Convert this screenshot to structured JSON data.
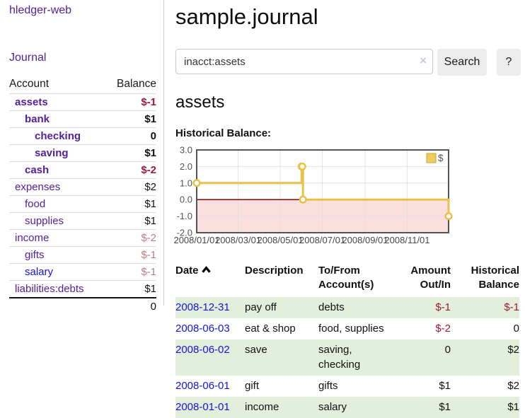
{
  "colors": {
    "link_purple": "#54219b",
    "link_blue": "#1414e0",
    "negative_strong": "#9e1b30",
    "negative_dim": "#bd7d82",
    "row_green": "#e2efda",
    "chart_line_gold": "#e8c04a",
    "chart_zero_line": "#8b0000",
    "chart_negative_fill": "#fbdede"
  },
  "sidebar": {
    "app_title": "hledger-web",
    "nav_journal": "Journal",
    "accounts_table": {
      "headers": [
        "Account",
        "Balance"
      ],
      "rows": [
        {
          "name": "assets",
          "balance": "$-1",
          "indent": 1,
          "bold": true,
          "balance_class": "neg-strong"
        },
        {
          "name": "bank",
          "balance": "$1",
          "indent": 2,
          "bold": true,
          "balance_class": ""
        },
        {
          "name": "checking",
          "balance": "0",
          "indent": 3,
          "bold": true,
          "balance_class": ""
        },
        {
          "name": "saving",
          "balance": "$1",
          "indent": 3,
          "bold": true,
          "balance_class": ""
        },
        {
          "name": "cash",
          "balance": "$-2",
          "indent": 2,
          "bold": true,
          "balance_class": "neg-strong"
        },
        {
          "name": "expenses",
          "balance": "$2",
          "indent": 1,
          "bold": false,
          "balance_class": ""
        },
        {
          "name": "food",
          "balance": "$1",
          "indent": 2,
          "bold": false,
          "balance_class": ""
        },
        {
          "name": "supplies",
          "balance": "$1",
          "indent": 2,
          "bold": false,
          "balance_class": ""
        },
        {
          "name": "income",
          "balance": "$-2",
          "indent": 1,
          "bold": false,
          "balance_class": "neg-dim"
        },
        {
          "name": "gifts",
          "balance": "$-1",
          "indent": 2,
          "bold": false,
          "balance_class": "neg-dim"
        },
        {
          "name": "salary",
          "balance": "$-1",
          "indent": 2,
          "bold": false,
          "balance_class": "neg-dim",
          "name_class": "blue"
        },
        {
          "name": "liabilities:debts",
          "balance": "$1",
          "indent": 1,
          "bold": false,
          "balance_class": ""
        }
      ],
      "total": "0"
    }
  },
  "header": {
    "title": "sample.journal"
  },
  "search": {
    "value": "inacct:assets",
    "clear_icon": "×",
    "button_label": "Search",
    "help_label": "?"
  },
  "account_page": {
    "title": "assets",
    "chart_label": "Historical Balance:"
  },
  "chart_data": {
    "type": "line",
    "style": "step",
    "title": "Historical Balance",
    "legend": {
      "label": "$",
      "position": "top-right"
    },
    "x_range": [
      "2008-01-01",
      "2008-12-31"
    ],
    "ylim": [
      -2,
      3
    ],
    "grid": true,
    "zero_line": true,
    "negative_region_shaded": true,
    "series": [
      {
        "name": "$",
        "points": [
          {
            "date": "2008-01-01",
            "value": 1
          },
          {
            "date": "2008-06-01",
            "value": 2
          },
          {
            "date": "2008-06-02",
            "value": 2
          },
          {
            "date": "2008-06-03",
            "value": 0
          },
          {
            "date": "2008-12-31",
            "value": -1
          }
        ]
      }
    ],
    "y_ticks": [
      {
        "label": "3.0",
        "value": 3
      },
      {
        "label": "2.0",
        "value": 2
      },
      {
        "label": "1.0",
        "value": 1
      },
      {
        "label": "0.0",
        "value": 0
      },
      {
        "label": "-1.0",
        "value": -1
      },
      {
        "label": "-2.0",
        "value": -2
      }
    ],
    "x_ticks": [
      {
        "label": "2008/01/01",
        "date": "2008-01-01"
      },
      {
        "label": "2008/03/01",
        "date": "2008-03-01"
      },
      {
        "label": "2008/05/01",
        "date": "2008-05-01"
      },
      {
        "label": "2008/07/01",
        "date": "2008-07-01"
      },
      {
        "label": "2008/09/01",
        "date": "2008-09-01"
      },
      {
        "label": "2008/11/01",
        "date": "2008-11-01"
      }
    ]
  },
  "transactions_table": {
    "headers": [
      "Date",
      "Description",
      "To/From Account(s)",
      "Amount Out/In",
      "Historical Balance"
    ],
    "sort": "date-ascending",
    "rows": [
      {
        "date": "2008-12-31",
        "description": "pay off",
        "accounts": "debts",
        "amount": "$-1",
        "amount_class": "neg",
        "balance": "$-1",
        "balance_class": "neg"
      },
      {
        "date": "2008-06-03",
        "description": "eat & shop",
        "accounts": "food, supplies",
        "amount": "$-2",
        "amount_class": "neg",
        "balance": "0",
        "balance_class": ""
      },
      {
        "date": "2008-06-02",
        "description": "save",
        "accounts": "saving, checking",
        "amount": "0",
        "amount_class": "",
        "balance": "$2",
        "balance_class": ""
      },
      {
        "date": "2008-06-01",
        "description": "gift",
        "accounts": "gifts",
        "amount": "$1",
        "amount_class": "",
        "balance": "$2",
        "balance_class": ""
      },
      {
        "date": "2008-01-01",
        "description": "income",
        "accounts": "salary",
        "amount": "$1",
        "amount_class": "",
        "balance": "$1",
        "balance_class": ""
      }
    ]
  }
}
